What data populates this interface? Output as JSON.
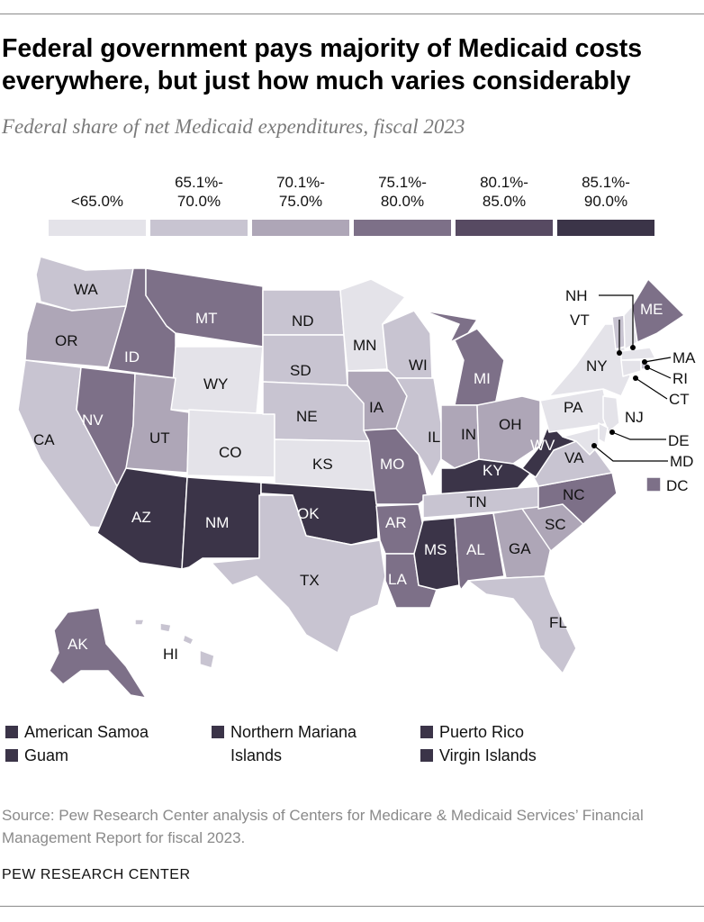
{
  "title": "Federal government pays majority of Medicaid costs everywhere, but just how much varies considerably",
  "subtitle": "Federal share of net Medicaid expenditures, fiscal 2023",
  "colors": {
    "lt65": "#e4e3e9",
    "c65_70": "#c8c4d1",
    "c70_75": "#aea6b7",
    "c75_80": "#7d7088",
    "c80_85": "#574a62",
    "c85_90": "#3b3448"
  },
  "legend": [
    {
      "label": "<65.0%",
      "color": "#e4e3e9"
    },
    {
      "label": "65.1%-\n70.0%",
      "color": "#c8c4d1"
    },
    {
      "label": "70.1%-\n75.0%",
      "color": "#aea6b7"
    },
    {
      "label": "75.1%-\n80.0%",
      "color": "#7d7088"
    },
    {
      "label": "80.1%-\n85.0%",
      "color": "#574a62"
    },
    {
      "label": "85.1%-\n90.0%",
      "color": "#3b3448"
    }
  ],
  "state_labels": {
    "WA": "WA",
    "OR": "OR",
    "CA": "CA",
    "ID": "ID",
    "NV": "NV",
    "MT": "MT",
    "WY": "WY",
    "UT": "UT",
    "AZ": "AZ",
    "CO": "CO",
    "NM": "NM",
    "ND": "ND",
    "SD": "SD",
    "NE": "NE",
    "KS": "KS",
    "OK": "OK",
    "TX": "TX",
    "MN": "MN",
    "IA": "IA",
    "MO": "MO",
    "AR": "AR",
    "LA": "LA",
    "WI": "WI",
    "IL": "IL",
    "MI": "MI",
    "IN": "IN",
    "OH": "OH",
    "KY": "KY",
    "TN": "TN",
    "MS": "MS",
    "AL": "AL",
    "GA": "GA",
    "FL": "FL",
    "SC": "SC",
    "NC": "NC",
    "VA": "VA",
    "WV": "WV",
    "PA": "PA",
    "NY": "NY",
    "VT": "VT",
    "NH": "NH",
    "ME": "ME",
    "MA": "MA",
    "RI": "RI",
    "CT": "CT",
    "NJ": "NJ",
    "DE": "DE",
    "MD": "MD",
    "DC": "DC",
    "AK": "AK",
    "HI": "HI"
  },
  "territories": [
    {
      "label": "American Samoa"
    },
    {
      "label": "Guam"
    },
    {
      "label": "Northern Mariana\nIslands"
    },
    {
      "label": "Puerto Rico"
    },
    {
      "label": "Virgin Islands"
    }
  ],
  "source": "Source: Pew Research Center analysis of Centers for Medicare & Medicaid Services’ Financial Management Report for fiscal 2023.",
  "brand": "PEW RESEARCH CENTER"
}
